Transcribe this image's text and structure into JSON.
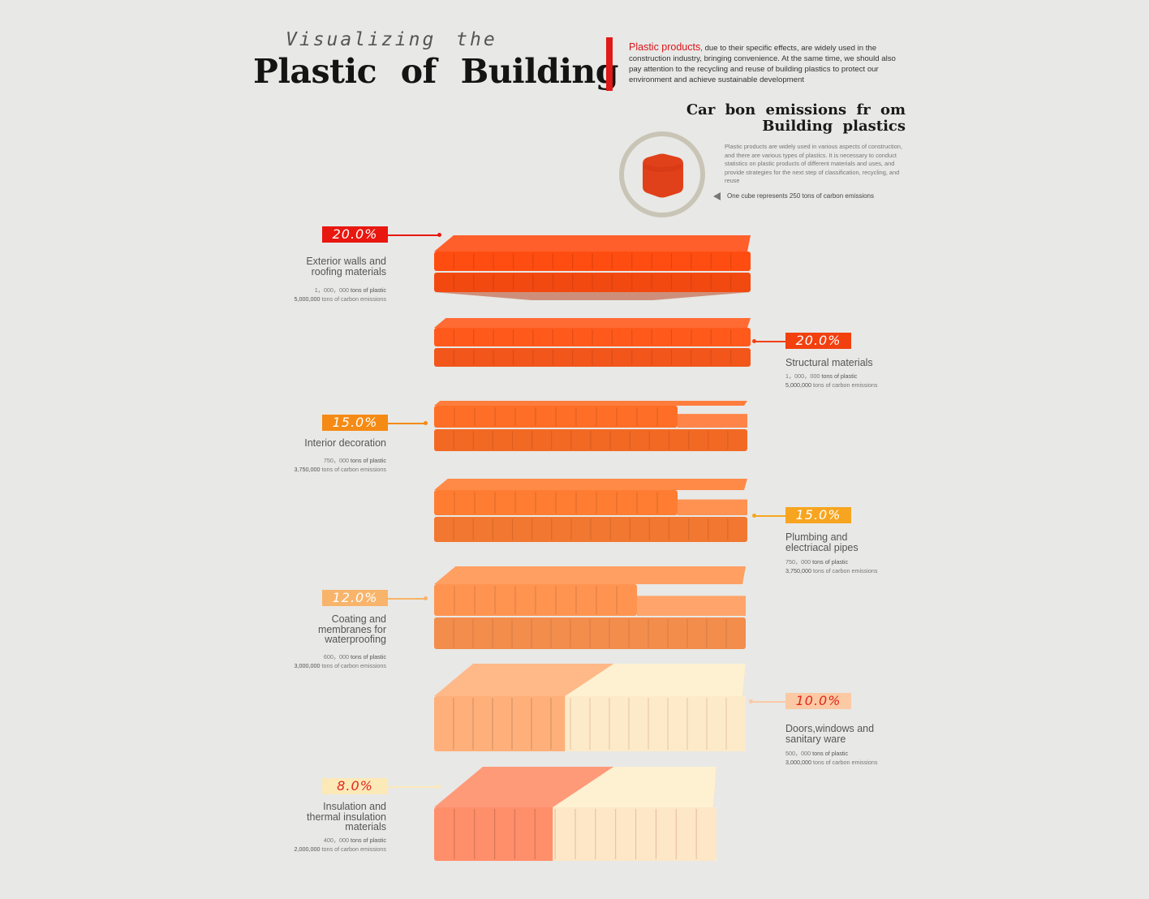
{
  "header": {
    "subtitle": "Visualizing the",
    "title": "Plastic of Building",
    "intro_highlight": "Plastic products",
    "intro_text": ", due to their specific effects, are widely used in the construction industry, bringing convenience. At the same time, we should also pay attention to the recycling and reuse of building plastics to protect our environment and achieve sustainable development"
  },
  "carbon_section": {
    "title_line1": "Car bon  emissions  fr om",
    "title_line2": "Building  plastics",
    "description": "Plastic products are widely used in various aspects of construction, and there are various types of plastics. It is necessary to conduct statistics on plastic products of different materials and uses, and provide strategies for the next step of classification, recycling, and reuse",
    "legend_text": "One cube represents 250 tons of carbon emissions",
    "legend_icon": "cube-icon"
  },
  "chart_data": {
    "type": "bar",
    "title": "Carbon emissions from Building plastics",
    "unit_note": "One cube represents 250 tons of carbon emissions",
    "categories": [
      "Exterior walls and roofing materials",
      "Structural materials",
      "Interior decoration",
      "Plumbing and electriacal pipes",
      "Coating and membranes for waterproofing",
      "Doors,windows and sanitary ware",
      "Insulation and thermal insulation materials"
    ],
    "series": [
      {
        "name": "share",
        "values": [
          20.0,
          20.0,
          15.0,
          15.0,
          12.0,
          10.0,
          8.0
        ]
      },
      {
        "name": "tons of plastic",
        "values": [
          1000000,
          1000000,
          750000,
          750000,
          600000,
          500000,
          400000
        ]
      },
      {
        "name": "tons of carbon emissions",
        "values": [
          5000000,
          5000000,
          3750000,
          3750000,
          3000000,
          3000000,
          2000000
        ]
      }
    ],
    "items": [
      {
        "percent_label": "20.0%",
        "percent": 20.0,
        "name_lines": [
          "Exterior walls and",
          "roofing materials"
        ],
        "plastic_num": "1，000，000",
        "plastic_text": "tons of plastic",
        "carbon_num": "5,000,000",
        "carbon_text": "tons of carbon emissions",
        "color": "#ff4d12",
        "badge_bg": "#e8170f",
        "badge_fg": "#ffffff"
      },
      {
        "percent_label": "20.0%",
        "percent": 20.0,
        "name_lines": [
          "Structural materials"
        ],
        "plastic_num": "1，000，000",
        "plastic_text": "tons of plastic",
        "carbon_num": "5,000,000",
        "carbon_text": "tons of carbon emissions",
        "color": "#ff5a1c",
        "badge_bg": "#f2400f",
        "badge_fg": "#ffffff"
      },
      {
        "percent_label": "15.0%",
        "percent": 15.0,
        "name_lines": [
          "Interior decoration"
        ],
        "plastic_num": "750，000",
        "plastic_text": "tons of plastic",
        "carbon_num": "3,750,000",
        "carbon_text": "tons of carbon emissions",
        "color": "#ff6e26",
        "badge_bg": "#f58a14",
        "badge_fg": "#ffffff"
      },
      {
        "percent_label": "15.0%",
        "percent": 15.0,
        "name_lines": [
          "Plumbing and",
          "electriacal pipes"
        ],
        "plastic_num": "750，000",
        "plastic_text": "tons of plastic",
        "carbon_num": "3,750,000",
        "carbon_text": "tons of carbon emissions",
        "color": "#ff7d32",
        "badge_bg": "#f7a520",
        "badge_fg": "#ffffff"
      },
      {
        "percent_label": "12.0%",
        "percent": 12.0,
        "name_lines": [
          "Coating and",
          "membranes for",
          "waterproofing"
        ],
        "plastic_num": "600，000",
        "plastic_text": "tons of plastic",
        "carbon_num": "3,000,000",
        "carbon_text": "tons of carbon emissions",
        "color": "#ff9450",
        "badge_bg": "#f8b46a",
        "badge_fg": "#ffffff"
      },
      {
        "percent_label": "10.0%",
        "percent": 10.0,
        "name_lines": [
          "Doors,windows and",
          "sanitary ware"
        ],
        "plastic_num": "500，000",
        "plastic_text": "tons of plastic",
        "carbon_num": "3,000,000",
        "carbon_text": "tons of carbon emissions",
        "color": "#ffb07a",
        "badge_bg": "#fbc9a4",
        "badge_fg": "#e0281c"
      },
      {
        "percent_label": "8.0%",
        "percent": 8.0,
        "name_lines": [
          "Insulation and",
          "thermal insulation",
          "materials"
        ],
        "plastic_num": "400，000",
        "plastic_text": "tons of plastic",
        "carbon_num": "2,000,000",
        "carbon_text": "tons of carbon emissions",
        "color": "#ff8f6a",
        "badge_bg": "#fce9b8",
        "badge_fg": "#e0281c"
      }
    ],
    "cream_color": "#fdf1d2",
    "accent": "#e01919"
  }
}
